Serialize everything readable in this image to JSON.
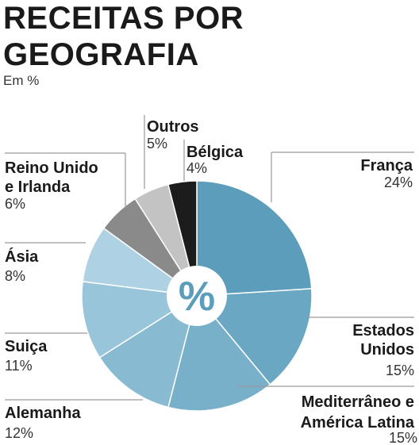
{
  "chart_data": {
    "type": "pie",
    "title_line1": "RECEITAS POR",
    "title_line2": "GEOGRAFIA",
    "subtitle": "Em %",
    "center_label": "%",
    "slices": [
      {
        "label": "França",
        "value": 24,
        "value_label": "24%",
        "color": "#5b9dbb"
      },
      {
        "label": "Estados Unidos",
        "value": 15,
        "value_label": "15%",
        "color": "#6aa7c3"
      },
      {
        "label": "Mediterrâneo e América Latina",
        "value": 15,
        "value_label": "15%",
        "color": "#78b0ca"
      },
      {
        "label": "Alemanha",
        "value": 12,
        "value_label": "12%",
        "color": "#88bad1"
      },
      {
        "label": "Suiça",
        "value": 11,
        "value_label": "11%",
        "color": "#99c5da"
      },
      {
        "label": "Ásia",
        "value": 8,
        "value_label": "8%",
        "color": "#aed2e3"
      },
      {
        "label": "Reino Unido e Irlanda",
        "value": 6,
        "value_label": "6%",
        "color": "#8a8a8a"
      },
      {
        "label": "Outros",
        "value": 5,
        "value_label": "5%",
        "color": "#c3c3c3"
      },
      {
        "label": "Bélgica",
        "value": 4,
        "value_label": "4%",
        "color": "#1c1c1c"
      }
    ]
  }
}
